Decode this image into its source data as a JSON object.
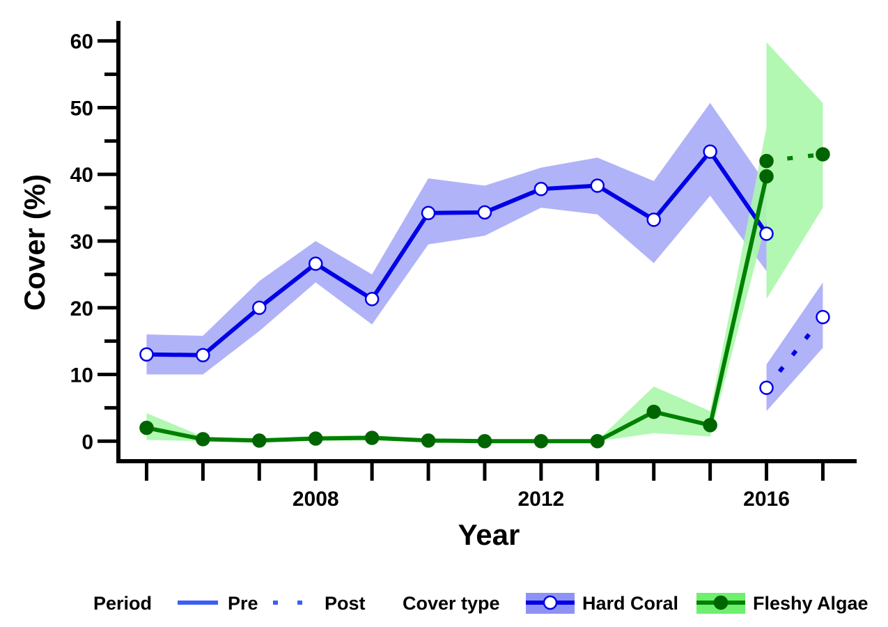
{
  "chart_data": {
    "type": "line",
    "xlabel": "Year",
    "ylabel": "Cover (%)",
    "xlim": [
      2004.5,
      2017.6
    ],
    "ylim": [
      -3,
      63
    ],
    "x_ticks": [
      2005,
      2006,
      2007,
      2008,
      2009,
      2010,
      2011,
      2012,
      2013,
      2014,
      2015,
      2016,
      2017
    ],
    "x_tick_labels": [
      {
        "value": 2008,
        "label": "2008"
      },
      {
        "value": 2012,
        "label": "2012"
      },
      {
        "value": 2016,
        "label": "2016"
      }
    ],
    "y_ticks": [
      0,
      5,
      10,
      15,
      20,
      25,
      30,
      35,
      40,
      45,
      50,
      55,
      60
    ],
    "y_tick_labels": [
      {
        "value": 0,
        "label": "0"
      },
      {
        "value": 10,
        "label": "10"
      },
      {
        "value": 20,
        "label": "20"
      },
      {
        "value": 30,
        "label": "30"
      },
      {
        "value": 40,
        "label": "40"
      },
      {
        "value": 50,
        "label": "50"
      },
      {
        "value": 60,
        "label": "60"
      }
    ],
    "series": [
      {
        "name": "Hard Coral",
        "period": "Pre",
        "color": "#0000e6",
        "band_color": "#a9abf7",
        "marker": "open-circle",
        "x": [
          2005,
          2006,
          2007,
          2008,
          2009,
          2010,
          2011,
          2012,
          2013,
          2014,
          2015,
          2016
        ],
        "y": [
          13,
          12.9,
          20,
          26.6,
          21.3,
          34.2,
          34.3,
          37.8,
          38.3,
          33.2,
          43.4,
          31.1
        ],
        "lower": [
          10,
          10,
          16.5,
          23.8,
          17.5,
          29.5,
          30.8,
          35,
          34,
          26.7,
          36.8,
          25.5
        ],
        "upper": [
          16,
          15.8,
          24,
          30,
          25,
          39.4,
          38.3,
          41,
          42.5,
          39,
          50.7,
          38.5
        ]
      },
      {
        "name": "Hard Coral",
        "period": "Post",
        "color": "#0000e6",
        "band_color": "#a9abf7",
        "marker": "open-circle",
        "x": [
          2016,
          2017
        ],
        "y": [
          8,
          18.6
        ],
        "lower": [
          4.5,
          14
        ],
        "upper": [
          11.5,
          23.8
        ]
      },
      {
        "name": "Fleshy Algae",
        "period": "Pre",
        "color": "#008000",
        "band_color": "#aaf7aa",
        "marker": "filled-circle",
        "x": [
          2005,
          2006,
          2007,
          2008,
          2009,
          2010,
          2011,
          2012,
          2013,
          2014,
          2015,
          2016
        ],
        "y": [
          2,
          0.3,
          0.1,
          0.4,
          0.5,
          0.1,
          0,
          0,
          0,
          4.4,
          2.4,
          39.7
        ],
        "lower": [
          0.2,
          0,
          0,
          0.1,
          0.1,
          0,
          0,
          0,
          0,
          1.2,
          0.7,
          33
        ],
        "upper": [
          4.2,
          0.7,
          0.4,
          0.8,
          0.9,
          0.3,
          0.1,
          0.1,
          0.1,
          8.2,
          4.5,
          47
        ]
      },
      {
        "name": "Fleshy Algae",
        "period": "Post",
        "color": "#008000",
        "band_color": "#aaf7aa",
        "marker": "filled-circle",
        "x": [
          2016,
          2017
        ],
        "y": [
          42,
          43
        ],
        "lower": [
          21.3,
          35
        ],
        "upper": [
          59.8,
          50.7
        ]
      }
    ],
    "legend": {
      "placement": "bottom",
      "period_title": "Period",
      "period_items": [
        {
          "label": "Pre",
          "linestyle": "solid",
          "color": "#3b5ef5"
        },
        {
          "label": "Post",
          "linestyle": "dotted",
          "color": "#3b5ef5"
        }
      ],
      "cover_title": "Cover type",
      "cover_items": [
        {
          "label": "Hard Coral",
          "line_color": "#0000e6",
          "fill_color": "#8f92f5",
          "marker": "open-circle"
        },
        {
          "label": "Fleshy Algae",
          "line_color": "#008000",
          "fill_color": "#6ef06e",
          "marker": "filled-circle"
        }
      ]
    },
    "grid": false
  }
}
